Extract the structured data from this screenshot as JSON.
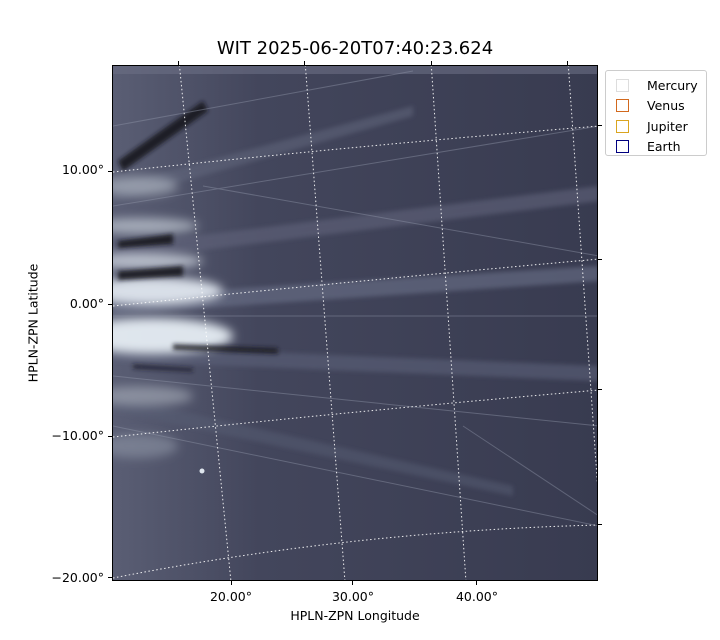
{
  "title": "WIT 2025-06-20T07:40:23.624",
  "axes": {
    "xlabel": "HPLN-ZPN Longitude",
    "ylabel": "HPLN-ZPN Latitude",
    "yticks": [
      "10.00°",
      "0.00°",
      "−10.00°",
      "−20.00°"
    ],
    "xticks": [
      "20.00°",
      "30.00°",
      "40.00°"
    ]
  },
  "legend": {
    "items": [
      {
        "label": "Mercury",
        "color": "#dddddd"
      },
      {
        "label": "Venus",
        "color": "#d2691e"
      },
      {
        "label": "Jupiter",
        "color": "#daa520"
      },
      {
        "label": "Earth",
        "color": "#000080"
      }
    ]
  },
  "image": {
    "background_color": "#3a3d52",
    "streak_color": "#dfe6ee"
  }
}
